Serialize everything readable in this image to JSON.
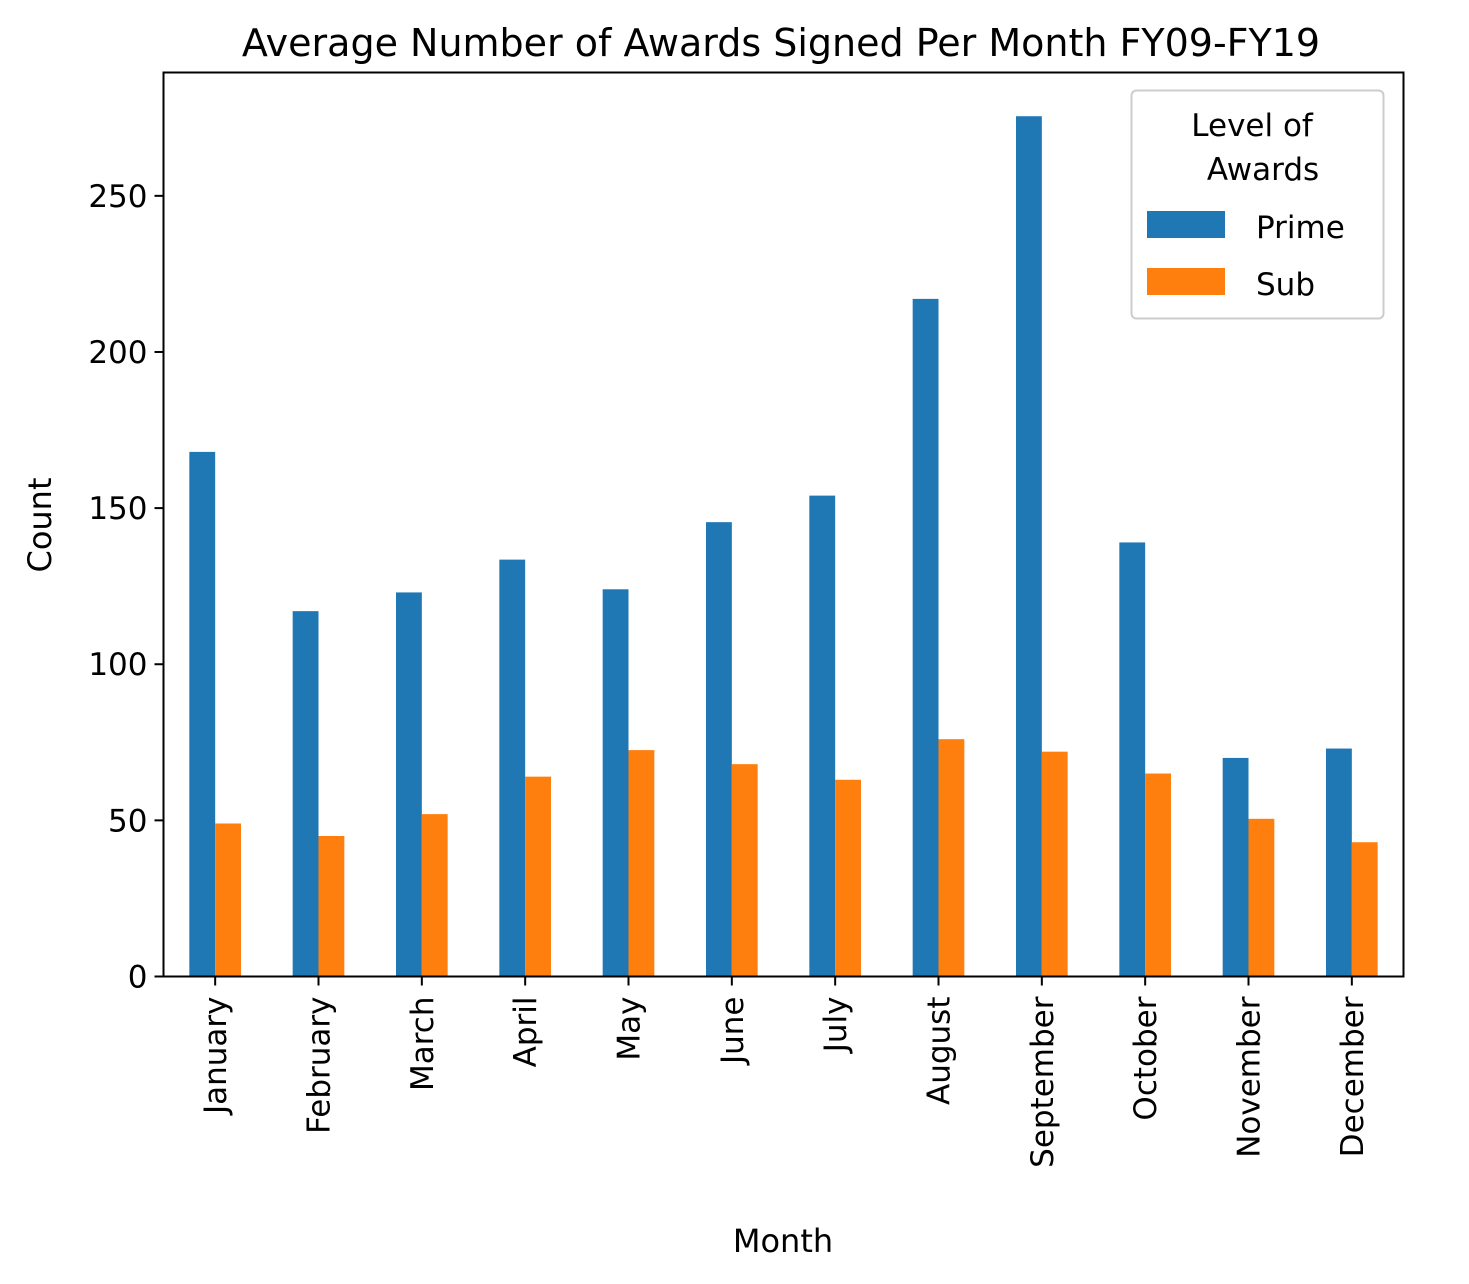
{
  "chart_data": {
    "type": "bar",
    "title": "Average Number of Awards Signed Per Month FY09-FY19",
    "xlabel": "Month",
    "ylabel": "Count",
    "categories": [
      "January",
      "February",
      "March",
      "April",
      "May",
      "June",
      "July",
      "August",
      "September",
      "October",
      "November",
      "December"
    ],
    "series": [
      {
        "name": "Prime",
        "color": "#1f77b4",
        "values": [
          168,
          117,
          123,
          133.5,
          124,
          145.5,
          154,
          217,
          275.5,
          139,
          70,
          73
        ]
      },
      {
        "name": "Sub",
        "color": "#ff7f0e",
        "values": [
          49,
          45,
          52,
          64,
          72.5,
          68,
          63,
          76,
          72,
          65,
          50.5,
          43
        ]
      }
    ],
    "ylim": [
      0,
      289.5
    ],
    "yticks": [
      0,
      50,
      100,
      150,
      200,
      250
    ],
    "grid": false,
    "legend": {
      "title_lines": [
        "Level of",
        "Awards"
      ],
      "position": "top-right"
    }
  }
}
